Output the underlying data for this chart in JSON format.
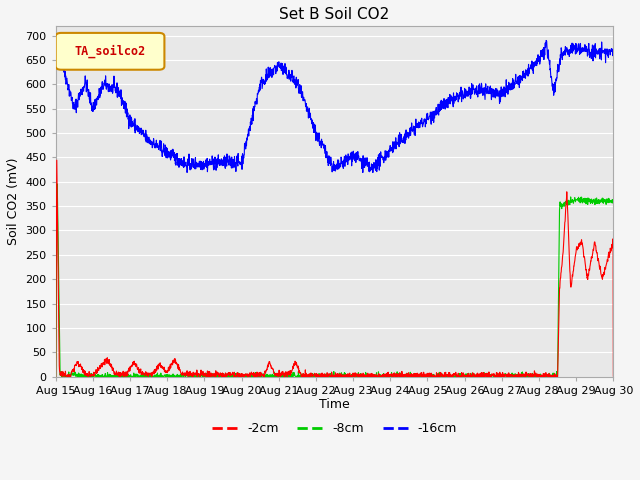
{
  "title": "Set B Soil CO2",
  "ylabel": "Soil CO2 (mV)",
  "xlabel": "Time",
  "ylim": [
    0,
    720
  ],
  "yticks": [
    0,
    50,
    100,
    150,
    200,
    250,
    300,
    350,
    400,
    450,
    500,
    550,
    600,
    650,
    700
  ],
  "legend_label": "TA_soilco2",
  "series_red_label": "-2cm",
  "series_red_color": "#ff0000",
  "series_green_label": "-8cm",
  "series_green_color": "#00cc00",
  "series_blue_label": "-16cm",
  "series_blue_color": "#0000ff",
  "fig_bg_color": "#f5f5f5",
  "plot_bg_color": "#e8e8e8",
  "grid_color": "#ffffff",
  "title_fontsize": 11,
  "label_fontsize": 9,
  "tick_fontsize": 8,
  "legend_box_facecolor": "#ffffcc",
  "legend_box_edgecolor": "#cc8800",
  "legend_text_color": "#cc0000"
}
